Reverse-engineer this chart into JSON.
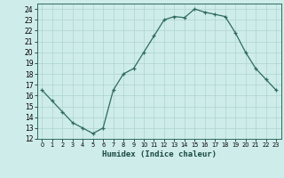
{
  "x": [
    0,
    1,
    2,
    3,
    4,
    5,
    6,
    7,
    8,
    9,
    10,
    11,
    12,
    13,
    14,
    15,
    16,
    17,
    18,
    19,
    20,
    21,
    22,
    23
  ],
  "y": [
    16.5,
    15.5,
    14.5,
    13.5,
    13.0,
    12.5,
    13.0,
    16.5,
    18.0,
    18.5,
    20.0,
    21.5,
    23.0,
    23.3,
    23.2,
    24.0,
    23.7,
    23.5,
    23.3,
    21.8,
    20.0,
    18.5,
    17.5,
    16.5
  ],
  "xlabel": "Humidex (Indice chaleur)",
  "xlim": [
    -0.5,
    23.5
  ],
  "ylim": [
    12,
    24.5
  ],
  "yticks": [
    12,
    13,
    14,
    15,
    16,
    17,
    18,
    19,
    20,
    21,
    22,
    23,
    24
  ],
  "xticks": [
    0,
    1,
    2,
    3,
    4,
    5,
    6,
    7,
    8,
    9,
    10,
    11,
    12,
    13,
    14,
    15,
    16,
    17,
    18,
    19,
    20,
    21,
    22,
    23
  ],
  "line_color": "#2e6b5e",
  "bg_color": "#ceecea",
  "grid_color": "#aed4d0",
  "marker": "+"
}
